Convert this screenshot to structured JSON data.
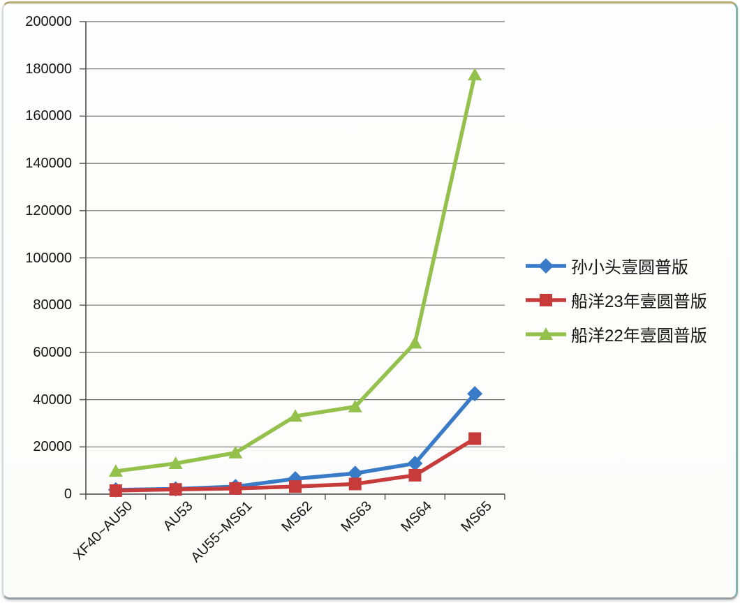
{
  "chart_data": {
    "type": "line",
    "title": "",
    "xlabel": "",
    "ylabel": "",
    "grid": true,
    "legend_position": "right",
    "categories": [
      "XF40~AU50",
      "AU53",
      "AU55~MS61",
      "MS62",
      "MS63",
      "MS64",
      "MS65"
    ],
    "series": [
      {
        "name": "孙小头壹圆普版",
        "color": "#3A7BC8",
        "marker": "diamond",
        "values": [
          1800,
          2200,
          3200,
          6500,
          8800,
          13000,
          42500
        ]
      },
      {
        "name": "船洋23年壹圆普版",
        "color": "#C83B3B",
        "marker": "square",
        "values": [
          1500,
          2000,
          2400,
          3200,
          4300,
          8000,
          23500
        ]
      },
      {
        "name": "船洋22年壹圆普版",
        "color": "#94C04C",
        "marker": "triangle",
        "values": [
          9700,
          13000,
          17500,
          33000,
          37000,
          64000,
          177500
        ]
      }
    ],
    "ylim": [
      0,
      200000
    ],
    "ytick_step": 20000,
    "yticks": [
      "0",
      "20000",
      "40000",
      "60000",
      "80000",
      "100000",
      "120000",
      "140000",
      "160000",
      "180000",
      "200000"
    ],
    "colors": {
      "gridline": "#6E6E6E",
      "axis": "#5A5A5A",
      "text": "#141414",
      "frame_top": "#b6a771",
      "frame_right": "#82b4ad",
      "frame_bottom": "#99a1a4"
    }
  }
}
